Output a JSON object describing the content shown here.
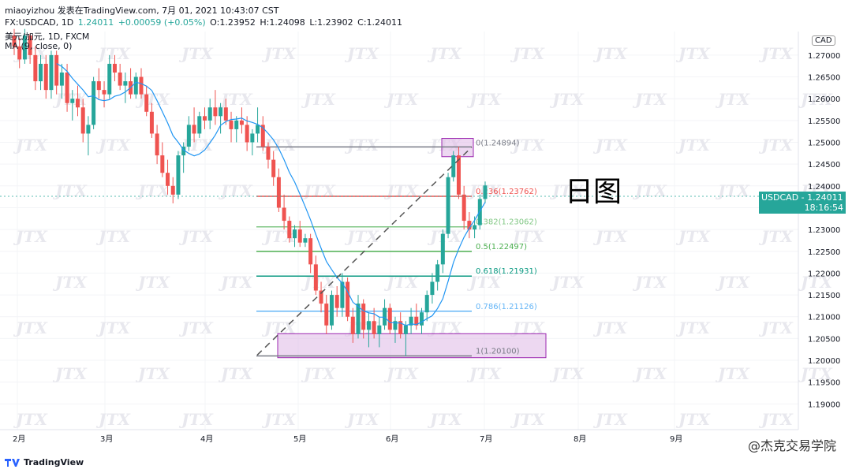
{
  "header": {
    "line1": "miaoyizhou 发表在TradingView.com, 7月 01, 2021 10:43:07 CST",
    "symbol": "FX:USDCAD, 1D",
    "last": "1.24011",
    "change": "+0.00059 (+0.05%)",
    "o": "O:1.23952",
    "h": "H:1.24098",
    "l": "L:1.23902",
    "c": "C:1.24011",
    "pair_name": "美元/加元, 1D, FXCM",
    "ma_label": "MA (9, close, 0)"
  },
  "annotation_label": "日图",
  "currency_badge": "CAD",
  "price_tag": {
    "symbol": "USDCAD",
    "value": "1.24011",
    "countdown": "18:16:54"
  },
  "footer": {
    "brand": "TradingView"
  },
  "watermark_text": "@杰克交易学院",
  "colors": {
    "up": "#26a69a",
    "down": "#ef5350",
    "ma": "#2196f3",
    "box": "#e1bee7",
    "box_border": "#9c27b0"
  },
  "chart_data": {
    "type": "candlestick",
    "ylim": [
      1.185,
      1.2745
    ],
    "y_ticks": [
      "1.27000",
      "1.26500",
      "1.26000",
      "1.25500",
      "1.25000",
      "1.24500",
      "1.24000",
      "1.23500",
      "1.23000",
      "1.22500",
      "1.22000",
      "1.21500",
      "1.21000",
      "1.20500",
      "1.20000",
      "1.19500",
      "1.19000"
    ],
    "x_ticks": [
      "2月",
      "3月",
      "4月",
      "5月",
      "6月",
      "7月",
      "8月",
      "9月"
    ],
    "fib_levels": [
      {
        "label": "0(1.24894)",
        "value": 1.24894,
        "color": "#787b86"
      },
      {
        "label": "0.236(1.23762)",
        "value": 1.23762,
        "color": "#ef5350"
      },
      {
        "label": "0.382(1.23062)",
        "value": 1.23062,
        "color": "#81c784"
      },
      {
        "label": "0.5(1.22497)",
        "value": 1.22497,
        "color": "#4caf50"
      },
      {
        "label": "0.618(1.21931)",
        "value": 1.21931,
        "color": "#089981"
      },
      {
        "label": "0.786(1.21126)",
        "value": 1.21126,
        "color": "#64b5f6"
      },
      {
        "label": "1(1.20100)",
        "value": 1.201,
        "color": "#787b86"
      }
    ],
    "candles": [
      [
        1.2745,
        1.276,
        1.27,
        1.272
      ],
      [
        1.272,
        1.274,
        1.267,
        1.269
      ],
      [
        1.269,
        1.276,
        1.268,
        1.2745
      ],
      [
        1.2745,
        1.275,
        1.268,
        1.27
      ],
      [
        1.27,
        1.272,
        1.262,
        1.264
      ],
      [
        1.264,
        1.27,
        1.262,
        1.268
      ],
      [
        1.268,
        1.27,
        1.26,
        1.262
      ],
      [
        1.262,
        1.271,
        1.26,
        1.27
      ],
      [
        1.27,
        1.271,
        1.261,
        1.263
      ],
      [
        1.263,
        1.268,
        1.26,
        1.266
      ],
      [
        1.266,
        1.268,
        1.257,
        1.259
      ],
      [
        1.259,
        1.262,
        1.255,
        1.26
      ],
      [
        1.26,
        1.263,
        1.256,
        1.258
      ],
      [
        1.258,
        1.26,
        1.25,
        1.252
      ],
      [
        1.252,
        1.256,
        1.247,
        1.254
      ],
      [
        1.254,
        1.265,
        1.253,
        1.264
      ],
      [
        1.264,
        1.267,
        1.26,
        1.262
      ],
      [
        1.262,
        1.264,
        1.258,
        1.261
      ],
      [
        1.261,
        1.27,
        1.26,
        1.268
      ],
      [
        1.268,
        1.27,
        1.264,
        1.266
      ],
      [
        1.266,
        1.268,
        1.262,
        1.263
      ],
      [
        1.263,
        1.266,
        1.259,
        1.264
      ],
      [
        1.264,
        1.267,
        1.26,
        1.261
      ],
      [
        1.261,
        1.266,
        1.26,
        1.265
      ],
      [
        1.265,
        1.267,
        1.26,
        1.261
      ],
      [
        1.261,
        1.263,
        1.256,
        1.257
      ],
      [
        1.257,
        1.259,
        1.251,
        1.252
      ],
      [
        1.252,
        1.254,
        1.245,
        1.247
      ],
      [
        1.247,
        1.25,
        1.242,
        1.243
      ],
      [
        1.243,
        1.246,
        1.238,
        1.24
      ],
      [
        1.24,
        1.242,
        1.236,
        1.238
      ],
      [
        1.238,
        1.248,
        1.237,
        1.247
      ],
      [
        1.247,
        1.25,
        1.243,
        1.249
      ],
      [
        1.249,
        1.256,
        1.248,
        1.254
      ],
      [
        1.254,
        1.258,
        1.25,
        1.252
      ],
      [
        1.252,
        1.257,
        1.251,
        1.256
      ],
      [
        1.256,
        1.258,
        1.253,
        1.255
      ],
      [
        1.255,
        1.26,
        1.253,
        1.258
      ],
      [
        1.258,
        1.262,
        1.254,
        1.256
      ],
      [
        1.256,
        1.259,
        1.252,
        1.258
      ],
      [
        1.258,
        1.26,
        1.254,
        1.255
      ],
      [
        1.255,
        1.257,
        1.25,
        1.253
      ],
      [
        1.253,
        1.256,
        1.25,
        1.255
      ],
      [
        1.255,
        1.258,
        1.252,
        1.254
      ],
      [
        1.254,
        1.256,
        1.248,
        1.25
      ],
      [
        1.25,
        1.253,
        1.247,
        1.252
      ],
      [
        1.252,
        1.258,
        1.25,
        1.254
      ],
      [
        1.254,
        1.256,
        1.248,
        1.249
      ],
      [
        1.249,
        1.25,
        1.244,
        1.246
      ],
      [
        1.246,
        1.248,
        1.24,
        1.242
      ],
      [
        1.242,
        1.244,
        1.234,
        1.235
      ],
      [
        1.235,
        1.238,
        1.23,
        1.232
      ],
      [
        1.232,
        1.233,
        1.227,
        1.228
      ],
      [
        1.228,
        1.231,
        1.226,
        1.23
      ],
      [
        1.23,
        1.232,
        1.226,
        1.227
      ],
      [
        1.227,
        1.229,
        1.226,
        1.228
      ],
      [
        1.228,
        1.229,
        1.22,
        1.222
      ],
      [
        1.222,
        1.224,
        1.215,
        1.216
      ],
      [
        1.216,
        1.218,
        1.211,
        1.213
      ],
      [
        1.213,
        1.215,
        1.206,
        1.208
      ],
      [
        1.208,
        1.216,
        1.207,
        1.215
      ],
      [
        1.215,
        1.217,
        1.21,
        1.212
      ],
      [
        1.212,
        1.22,
        1.21,
        1.218
      ],
      [
        1.218,
        1.219,
        1.209,
        1.21
      ],
      [
        1.21,
        1.212,
        1.204,
        1.206
      ],
      [
        1.206,
        1.215,
        1.205,
        1.213
      ],
      [
        1.213,
        1.214,
        1.205,
        1.207
      ],
      [
        1.207,
        1.211,
        1.203,
        1.209
      ],
      [
        1.209,
        1.212,
        1.205,
        1.206
      ],
      [
        1.206,
        1.21,
        1.203,
        1.208
      ],
      [
        1.208,
        1.214,
        1.207,
        1.212
      ],
      [
        1.212,
        1.213,
        1.206,
        1.207
      ],
      [
        1.207,
        1.21,
        1.204,
        1.209
      ],
      [
        1.209,
        1.211,
        1.205,
        1.206
      ],
      [
        1.206,
        1.209,
        1.201,
        1.208
      ],
      [
        1.208,
        1.212,
        1.206,
        1.21
      ],
      [
        1.21,
        1.213,
        1.207,
        1.208
      ],
      [
        1.208,
        1.212,
        1.206,
        1.211
      ],
      [
        1.211,
        1.216,
        1.209,
        1.215
      ],
      [
        1.215,
        1.22,
        1.213,
        1.218
      ],
      [
        1.218,
        1.223,
        1.216,
        1.222
      ],
      [
        1.222,
        1.23,
        1.22,
        1.229
      ],
      [
        1.229,
        1.243,
        1.228,
        1.242
      ],
      [
        1.242,
        1.248,
        1.241,
        1.247
      ],
      [
        1.247,
        1.249,
        1.237,
        1.238
      ],
      [
        1.238,
        1.24,
        1.23,
        1.232
      ],
      [
        1.232,
        1.234,
        1.228,
        1.23
      ],
      [
        1.23,
        1.233,
        1.228,
        1.231
      ],
      [
        1.231,
        1.238,
        1.23,
        1.237
      ],
      [
        1.237,
        1.241,
        1.236,
        1.2401
      ]
    ]
  }
}
